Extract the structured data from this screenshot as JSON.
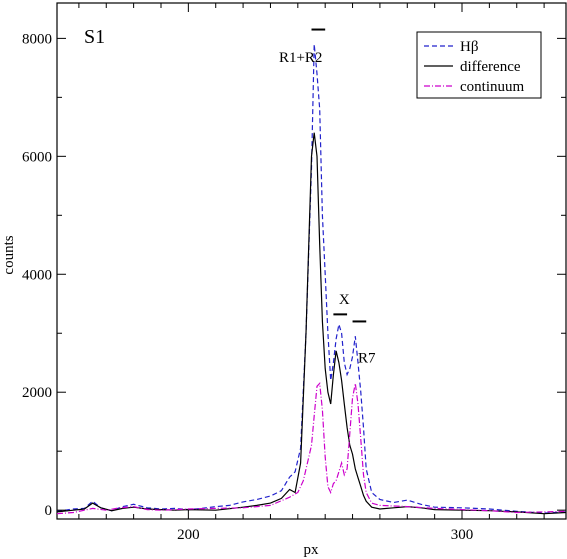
{
  "chart_data": {
    "type": "line",
    "panel_label": "S1",
    "xlabel": "px",
    "ylabel": "counts",
    "xlim": [
      152,
      338
    ],
    "ylim": [
      -150,
      8600
    ],
    "x_ticks": [
      200,
      300
    ],
    "y_ticks": [
      0,
      2000,
      4000,
      6000,
      8000
    ],
    "grid": false,
    "legend_position": "top-right",
    "series": [
      {
        "name": "Hβ",
        "color": "#2222cc",
        "style": "dashed",
        "points": [
          [
            152,
            -20
          ],
          [
            158,
            20
          ],
          [
            162,
            30
          ],
          [
            165,
            150
          ],
          [
            168,
            40
          ],
          [
            172,
            -10
          ],
          [
            176,
            60
          ],
          [
            180,
            100
          ],
          [
            185,
            40
          ],
          [
            190,
            20
          ],
          [
            195,
            30
          ],
          [
            200,
            10
          ],
          [
            205,
            30
          ],
          [
            210,
            60
          ],
          [
            215,
            80
          ],
          [
            220,
            140
          ],
          [
            225,
            180
          ],
          [
            230,
            240
          ],
          [
            234,
            330
          ],
          [
            237,
            560
          ],
          [
            239,
            650
          ],
          [
            241,
            1050
          ],
          [
            243,
            3000
          ],
          [
            245,
            5800
          ],
          [
            246,
            7900
          ],
          [
            247,
            7400
          ],
          [
            248,
            6800
          ],
          [
            249,
            5000
          ],
          [
            250,
            4000
          ],
          [
            251,
            3000
          ],
          [
            252,
            2200
          ],
          [
            253,
            2500
          ],
          [
            254,
            2900
          ],
          [
            255,
            3150
          ],
          [
            256,
            3000
          ],
          [
            257,
            2500
          ],
          [
            258,
            2300
          ],
          [
            259,
            2400
          ],
          [
            260,
            2600
          ],
          [
            261,
            2950
          ],
          [
            262,
            2500
          ],
          [
            263,
            2000
          ],
          [
            264,
            1400
          ],
          [
            265,
            700
          ],
          [
            267,
            300
          ],
          [
            270,
            180
          ],
          [
            275,
            130
          ],
          [
            280,
            170
          ],
          [
            285,
            100
          ],
          [
            290,
            50
          ],
          [
            300,
            40
          ],
          [
            310,
            20
          ],
          [
            320,
            -20
          ],
          [
            330,
            -50
          ],
          [
            338,
            -30
          ]
        ]
      },
      {
        "name": "difference",
        "color": "#000000",
        "style": "solid",
        "points": [
          [
            152,
            -30
          ],
          [
            158,
            0
          ],
          [
            162,
            20
          ],
          [
            165,
            120
          ],
          [
            168,
            40
          ],
          [
            172,
            -10
          ],
          [
            176,
            30
          ],
          [
            180,
            50
          ],
          [
            185,
            20
          ],
          [
            190,
            10
          ],
          [
            195,
            0
          ],
          [
            200,
            10
          ],
          [
            210,
            0
          ],
          [
            220,
            50
          ],
          [
            225,
            80
          ],
          [
            230,
            120
          ],
          [
            234,
            200
          ],
          [
            237,
            350
          ],
          [
            239,
            300
          ],
          [
            241,
            800
          ],
          [
            243,
            3000
          ],
          [
            245,
            6000
          ],
          [
            246,
            6400
          ],
          [
            247,
            6000
          ],
          [
            248,
            4500
          ],
          [
            249,
            3200
          ],
          [
            250,
            2400
          ],
          [
            251,
            2000
          ],
          [
            252,
            1800
          ],
          [
            253,
            2300
          ],
          [
            254,
            2700
          ],
          [
            255,
            2500
          ],
          [
            256,
            2200
          ],
          [
            257,
            1800
          ],
          [
            258,
            1400
          ],
          [
            259,
            1100
          ],
          [
            260,
            950
          ],
          [
            261,
            700
          ],
          [
            262,
            550
          ],
          [
            263,
            400
          ],
          [
            264,
            250
          ],
          [
            265,
            150
          ],
          [
            267,
            50
          ],
          [
            270,
            20
          ],
          [
            275,
            40
          ],
          [
            280,
            60
          ],
          [
            285,
            40
          ],
          [
            290,
            10
          ],
          [
            300,
            0
          ],
          [
            310,
            -10
          ],
          [
            320,
            -30
          ],
          [
            330,
            -60
          ],
          [
            338,
            -40
          ]
        ]
      },
      {
        "name": "continuum",
        "color": "#cc00cc",
        "style": "dashdot",
        "points": [
          [
            152,
            -60
          ],
          [
            158,
            -40
          ],
          [
            162,
            0
          ],
          [
            165,
            30
          ],
          [
            170,
            0
          ],
          [
            175,
            40
          ],
          [
            180,
            60
          ],
          [
            185,
            10
          ],
          [
            190,
            0
          ],
          [
            200,
            20
          ],
          [
            210,
            30
          ],
          [
            220,
            40
          ],
          [
            230,
            80
          ],
          [
            237,
            220
          ],
          [
            240,
            300
          ],
          [
            242,
            500
          ],
          [
            244,
            900
          ],
          [
            245,
            1100
          ],
          [
            246,
            1600
          ],
          [
            247,
            2100
          ],
          [
            248,
            2150
          ],
          [
            249,
            1700
          ],
          [
            250,
            900
          ],
          [
            251,
            400
          ],
          [
            252,
            300
          ],
          [
            253,
            450
          ],
          [
            254,
            500
          ],
          [
            255,
            650
          ],
          [
            256,
            800
          ],
          [
            257,
            600
          ],
          [
            258,
            700
          ],
          [
            259,
            1300
          ],
          [
            260,
            1900
          ],
          [
            261,
            2150
          ],
          [
            262,
            1800
          ],
          [
            263,
            1200
          ],
          [
            264,
            600
          ],
          [
            265,
            300
          ],
          [
            267,
            120
          ],
          [
            270,
            80
          ],
          [
            275,
            70
          ],
          [
            280,
            60
          ],
          [
            290,
            30
          ],
          [
            300,
            10
          ],
          [
            310,
            -10
          ],
          [
            320,
            -40
          ],
          [
            330,
            -30
          ],
          [
            338,
            -20
          ]
        ]
      }
    ],
    "annotations": [
      {
        "text": "R1+R2",
        "x": 249,
        "y": 7600
      },
      {
        "text": "X",
        "x": 257,
        "y": 3500
      },
      {
        "text": "R7",
        "x": 262,
        "y": 2500
      }
    ],
    "marker_bars": [
      {
        "x1": 245,
        "x2": 250,
        "y": 8150
      },
      {
        "x1": 253,
        "x2": 258,
        "y": 3320
      },
      {
        "x1": 260,
        "x2": 265,
        "y": 3200
      }
    ]
  }
}
